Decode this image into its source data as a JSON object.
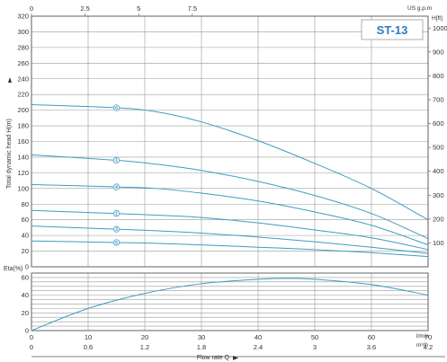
{
  "chart_data": [
    {
      "type": "line",
      "model_label": "ST-13",
      "ylabel": "Total dynamic head H(m)",
      "ylim": [
        0,
        320
      ],
      "yticks": [
        0,
        20,
        40,
        60,
        80,
        100,
        120,
        140,
        160,
        180,
        200,
        220,
        240,
        260,
        280,
        300,
        320
      ],
      "xlim": [
        0,
        70
      ],
      "secondary_top_axis": {
        "unit": "US g.p.m",
        "ticks": [
          "0",
          "2.5",
          "5",
          "7.5"
        ],
        "values": [
          0,
          2.5,
          5,
          7.5
        ]
      },
      "secondary_right_axis": {
        "unit": "H[ft]",
        "ticks": [
          "100",
          "200",
          "300",
          "400",
          "500",
          "600",
          "700",
          "800",
          "900",
          "1000"
        ],
        "values": [
          100,
          200,
          300,
          400,
          500,
          600,
          700,
          800,
          900,
          1000
        ]
      },
      "grid": true,
      "series": [
        {
          "marker": "5",
          "x": [
            0,
            15,
            22,
            30,
            40,
            50,
            60,
            70
          ],
          "y": [
            33,
            31,
            30,
            28,
            25,
            22,
            18,
            13
          ]
        },
        {
          "marker": "3",
          "x": [
            0,
            15,
            22,
            30,
            40,
            50,
            60,
            70
          ],
          "y": [
            52,
            48,
            46,
            43,
            38,
            32,
            25,
            17
          ]
        },
        {
          "marker": "1",
          "x": [
            0,
            15,
            22,
            30,
            40,
            50,
            60,
            70
          ],
          "y": [
            72,
            68,
            66,
            63,
            56,
            47,
            37,
            22
          ]
        },
        {
          "marker": "4",
          "x": [
            0,
            15,
            22,
            30,
            40,
            50,
            60,
            70
          ],
          "y": [
            105,
            102,
            100,
            94,
            84,
            70,
            53,
            28
          ]
        },
        {
          "marker": "1",
          "x": [
            0,
            15,
            22,
            30,
            40,
            50,
            60,
            70
          ],
          "y": [
            143,
            136,
            131,
            123,
            109,
            91,
            68,
            36
          ]
        },
        {
          "marker": "6",
          "x": [
            0,
            15,
            22,
            30,
            40,
            50,
            60,
            70
          ],
          "y": [
            207,
            203,
            198,
            185,
            161,
            132,
            100,
            60
          ]
        }
      ]
    },
    {
      "type": "line",
      "ylabel": "Eta(%)",
      "ylim": [
        0,
        65
      ],
      "yticks": [
        0,
        20,
        40,
        60
      ],
      "xlim": [
        0,
        70
      ],
      "grid": true,
      "x_ticks_lmin": [
        "0",
        "10",
        "20",
        "30",
        "40",
        "50",
        "60",
        "70"
      ],
      "x_ticks_lmin_values": [
        0,
        10,
        20,
        30,
        40,
        50,
        60,
        70
      ],
      "x_unit_lmin": "l/min",
      "x_ticks_m3h": [
        "0",
        "0.6",
        "1.2",
        "1.8",
        "2.4",
        "3",
        "3.6",
        "4.2"
      ],
      "x_unit_m3h": "m³/h",
      "xlabel": "Flow rate Q",
      "series": [
        {
          "x": [
            0,
            10,
            20,
            30,
            40,
            45,
            50,
            60,
            70
          ],
          "y": [
            0,
            25,
            42,
            53,
            58,
            59,
            58,
            52,
            40
          ]
        }
      ]
    }
  ]
}
